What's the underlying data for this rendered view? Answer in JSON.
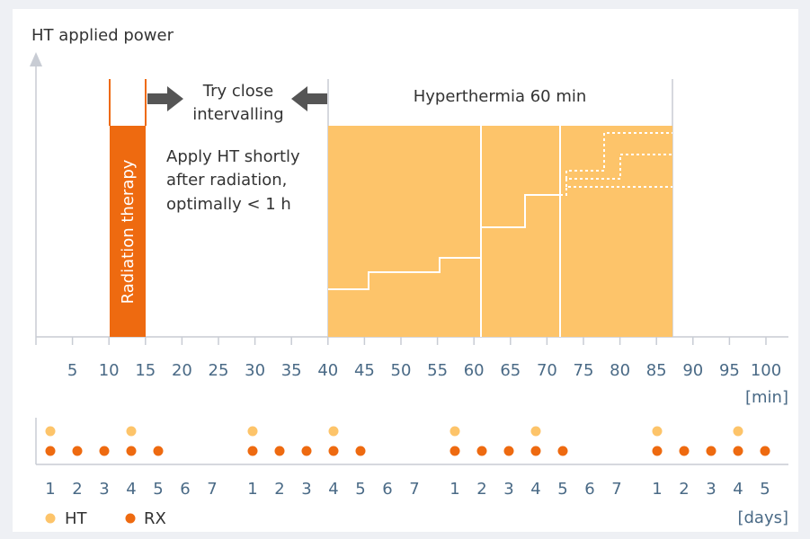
{
  "title": "HT applied power",
  "x_axis": {
    "ticks": [
      5,
      10,
      15,
      20,
      25,
      30,
      35,
      40,
      45,
      50,
      55,
      60,
      65,
      70,
      75,
      80,
      85,
      90,
      95,
      100
    ],
    "unit": "[min]"
  },
  "labels": {
    "radiation": "Radiation therapy",
    "interval": [
      "Try close",
      "intervalling"
    ],
    "hyperthermia": "Hyperthermia 60 min",
    "apply": [
      "Apply HT shortly",
      "after radiation,",
      "optimally < 1 h"
    ]
  },
  "schedule": {
    "weeks": [
      {
        "days": [
          1,
          2,
          3,
          4,
          5,
          6,
          7
        ],
        "ht_days": [
          1,
          4
        ],
        "rx_days": [
          1,
          2,
          3,
          4,
          5
        ]
      },
      {
        "days": [
          1,
          2,
          3,
          4,
          5,
          6,
          7
        ],
        "ht_days": [
          1,
          4
        ],
        "rx_days": [
          1,
          2,
          3,
          4,
          5
        ]
      },
      {
        "days": [
          1,
          2,
          3,
          4,
          5,
          6,
          7
        ],
        "ht_days": [
          1,
          4
        ],
        "rx_days": [
          1,
          2,
          3,
          4,
          5
        ]
      },
      {
        "days": [
          1,
          2,
          3,
          4,
          5
        ],
        "ht_days": [
          1,
          4
        ],
        "rx_days": [
          1,
          2,
          3,
          4,
          5
        ]
      }
    ],
    "unit": "[days]"
  },
  "legend": [
    {
      "label": "HT",
      "color": "#fdc46a"
    },
    {
      "label": "RX",
      "color": "#ee6a10"
    }
  ]
}
